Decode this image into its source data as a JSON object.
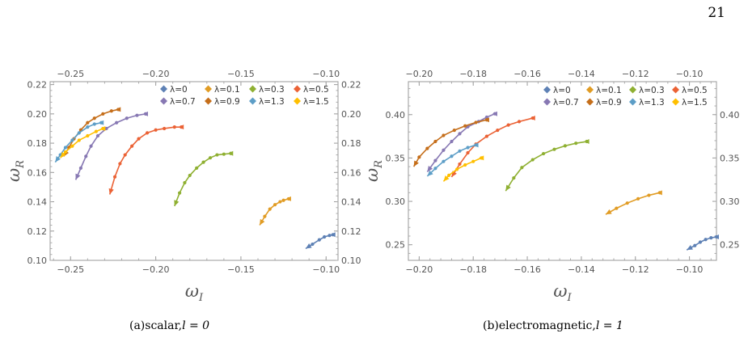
{
  "page_number": "21",
  "chart_data": [
    {
      "type": "line",
      "caption": "(a)scalar,",
      "caption_math": "l = 0",
      "xlabel": "ω",
      "xlabel_sub": "I",
      "ylabel": "ω",
      "ylabel_sub": "R",
      "xlim": [
        -0.262,
        -0.093
      ],
      "ylim": [
        0.1,
        0.222
      ],
      "xticks": [
        -0.25,
        -0.2,
        -0.15,
        -0.1
      ],
      "xtick_labels": [
        "−0.25",
        "−0.20",
        "−0.15",
        "−0.10"
      ],
      "yticks": [
        0.1,
        0.12,
        0.14,
        0.16,
        0.18,
        0.2,
        0.22
      ],
      "ytick_labels": [
        "0.10",
        "0.12",
        "0.14",
        "0.16",
        "0.18",
        "0.20",
        "0.22"
      ],
      "mirror_axes": true,
      "legend_position": "top-right",
      "series": [
        {
          "name": "λ=0",
          "color": "#5e81b5",
          "points": [
            [
              -0.112,
              0.108
            ],
            [
              -0.108,
              0.111
            ],
            [
              -0.104,
              0.114
            ],
            [
              -0.101,
              0.116
            ],
            [
              -0.098,
              0.117
            ],
            [
              -0.096,
              0.1175
            ]
          ]
        },
        {
          "name": "λ=0.1",
          "color": "#e19c24",
          "points": [
            [
              -0.139,
              0.124
            ],
            [
              -0.136,
              0.13
            ],
            [
              -0.133,
              0.135
            ],
            [
              -0.13,
              0.138
            ],
            [
              -0.127,
              0.14
            ],
            [
              -0.125,
              0.141
            ],
            [
              -0.122,
              0.142
            ]
          ]
        },
        {
          "name": "λ=0.3",
          "color": "#8fb032",
          "points": [
            [
              -0.189,
              0.137
            ],
            [
              -0.186,
              0.146
            ],
            [
              -0.183,
              0.153
            ],
            [
              -0.18,
              0.158
            ],
            [
              -0.176,
              0.163
            ],
            [
              -0.172,
              0.167
            ],
            [
              -0.168,
              0.17
            ],
            [
              -0.164,
              0.172
            ],
            [
              -0.16,
              0.1725
            ],
            [
              -0.156,
              0.173
            ]
          ]
        },
        {
          "name": "λ=0.5",
          "color": "#eb6235",
          "points": [
            [
              -0.227,
              0.145
            ],
            [
              -0.224,
              0.157
            ],
            [
              -0.221,
              0.166
            ],
            [
              -0.218,
              0.172
            ],
            [
              -0.214,
              0.178
            ],
            [
              -0.21,
              0.183
            ],
            [
              -0.205,
              0.187
            ],
            [
              -0.2,
              0.189
            ],
            [
              -0.195,
              0.19
            ],
            [
              -0.189,
              0.191
            ],
            [
              -0.185,
              0.191
            ]
          ]
        },
        {
          "name": "λ=0.7",
          "color": "#8778b3",
          "points": [
            [
              -0.247,
              0.155
            ],
            [
              -0.244,
              0.163
            ],
            [
              -0.241,
              0.171
            ],
            [
              -0.238,
              0.178
            ],
            [
              -0.234,
              0.185
            ],
            [
              -0.229,
              0.19
            ],
            [
              -0.223,
              0.194
            ],
            [
              -0.217,
              0.197
            ],
            [
              -0.211,
              0.199
            ],
            [
              -0.206,
              0.2
            ]
          ]
        },
        {
          "name": "λ=0.9",
          "color": "#c56e1a",
          "points": [
            [
              -0.254,
              0.171
            ],
            [
              -0.251,
              0.177
            ],
            [
              -0.248,
              0.183
            ],
            [
              -0.244,
              0.189
            ],
            [
              -0.24,
              0.194
            ],
            [
              -0.236,
              0.197
            ],
            [
              -0.231,
              0.2
            ],
            [
              -0.226,
              0.202
            ],
            [
              -0.222,
              0.203
            ]
          ]
        },
        {
          "name": "λ=1.3",
          "color": "#5d9ec7",
          "points": [
            [
              -0.259,
              0.167
            ],
            [
              -0.256,
              0.172
            ],
            [
              -0.253,
              0.177
            ],
            [
              -0.249,
              0.182
            ],
            [
              -0.245,
              0.187
            ],
            [
              -0.24,
              0.191
            ],
            [
              -0.236,
              0.193
            ],
            [
              -0.232,
              0.194
            ]
          ]
        },
        {
          "name": "λ=1.5",
          "color": "#ffbf00",
          "points": [
            [
              -0.256,
              0.17
            ],
            [
              -0.253,
              0.174
            ],
            [
              -0.249,
              0.178
            ],
            [
              -0.245,
              0.182
            ],
            [
              -0.24,
              0.185
            ],
            [
              -0.235,
              0.188
            ],
            [
              -0.231,
              0.19
            ]
          ]
        }
      ]
    },
    {
      "type": "line",
      "caption": "(b)electromagnetic,",
      "caption_math": "l = 1",
      "xlabel": "ω",
      "xlabel_sub": "I",
      "ylabel": "ω",
      "ylabel_sub": "R",
      "xlim": [
        -0.204,
        -0.09
      ],
      "ylim": [
        0.232,
        0.438
      ],
      "xticks": [
        -0.2,
        -0.18,
        -0.16,
        -0.14,
        -0.12,
        -0.1
      ],
      "xtick_labels": [
        "−0.20",
        "−0.18",
        "−0.16",
        "−0.14",
        "−0.12",
        "−0.10"
      ],
      "yticks": [
        0.25,
        0.3,
        0.35,
        0.4
      ],
      "ytick_labels": [
        "0.25",
        "0.30",
        "0.35",
        "0.40"
      ],
      "mirror_axes": true,
      "legend_position": "top-right",
      "series": [
        {
          "name": "λ=0",
          "color": "#5e81b5",
          "points": [
            [
              -0.101,
              0.244
            ],
            [
              -0.098,
              0.249
            ],
            [
              -0.096,
              0.253
            ],
            [
              -0.094,
              0.256
            ],
            [
              -0.092,
              0.258
            ],
            [
              -0.09,
              0.259
            ]
          ]
        },
        {
          "name": "λ=0.1",
          "color": "#e19c24",
          "points": [
            [
              -0.131,
              0.285
            ],
            [
              -0.127,
              0.292
            ],
            [
              -0.123,
              0.298
            ],
            [
              -0.119,
              0.303
            ],
            [
              -0.115,
              0.307
            ],
            [
              -0.111,
              0.31
            ]
          ]
        },
        {
          "name": "λ=0.3",
          "color": "#8fb032",
          "points": [
            [
              -0.168,
              0.312
            ],
            [
              -0.165,
              0.327
            ],
            [
              -0.162,
              0.339
            ],
            [
              -0.158,
              0.348
            ],
            [
              -0.154,
              0.355
            ],
            [
              -0.15,
              0.36
            ],
            [
              -0.146,
              0.364
            ],
            [
              -0.142,
              0.367
            ],
            [
              -0.138,
              0.369
            ]
          ]
        },
        {
          "name": "λ=0.5",
          "color": "#eb6235",
          "points": [
            [
              -0.188,
              0.328
            ],
            [
              -0.185,
              0.343
            ],
            [
              -0.182,
              0.356
            ],
            [
              -0.179,
              0.366
            ],
            [
              -0.175,
              0.375
            ],
            [
              -0.171,
              0.382
            ],
            [
              -0.167,
              0.388
            ],
            [
              -0.163,
              0.392
            ],
            [
              -0.158,
              0.396
            ]
          ]
        },
        {
          "name": "λ=0.7",
          "color": "#8778b3",
          "points": [
            [
              -0.197,
              0.334
            ],
            [
              -0.194,
              0.347
            ],
            [
              -0.191,
              0.359
            ],
            [
              -0.188,
              0.369
            ],
            [
              -0.185,
              0.378
            ],
            [
              -0.182,
              0.386
            ],
            [
              -0.178,
              0.392
            ],
            [
              -0.175,
              0.397
            ],
            [
              -0.172,
              0.401
            ]
          ]
        },
        {
          "name": "λ=0.9",
          "color": "#c56e1a",
          "points": [
            [
              -0.202,
              0.34
            ],
            [
              -0.2,
              0.351
            ],
            [
              -0.197,
              0.361
            ],
            [
              -0.194,
              0.369
            ],
            [
              -0.191,
              0.376
            ],
            [
              -0.187,
              0.382
            ],
            [
              -0.183,
              0.387
            ],
            [
              -0.179,
              0.391
            ],
            [
              -0.175,
              0.394
            ]
          ]
        },
        {
          "name": "λ=1.3",
          "color": "#5d9ec7",
          "points": [
            [
              -0.197,
              0.329
            ],
            [
              -0.194,
              0.338
            ],
            [
              -0.191,
              0.346
            ],
            [
              -0.188,
              0.352
            ],
            [
              -0.185,
              0.358
            ],
            [
              -0.182,
              0.362
            ],
            [
              -0.179,
              0.365
            ]
          ]
        },
        {
          "name": "λ=1.5",
          "color": "#ffbf00",
          "points": [
            [
              -0.191,
              0.323
            ],
            [
              -0.189,
              0.33
            ],
            [
              -0.186,
              0.337
            ],
            [
              -0.183,
              0.342
            ],
            [
              -0.18,
              0.346
            ],
            [
              -0.177,
              0.35
            ]
          ]
        }
      ]
    }
  ]
}
